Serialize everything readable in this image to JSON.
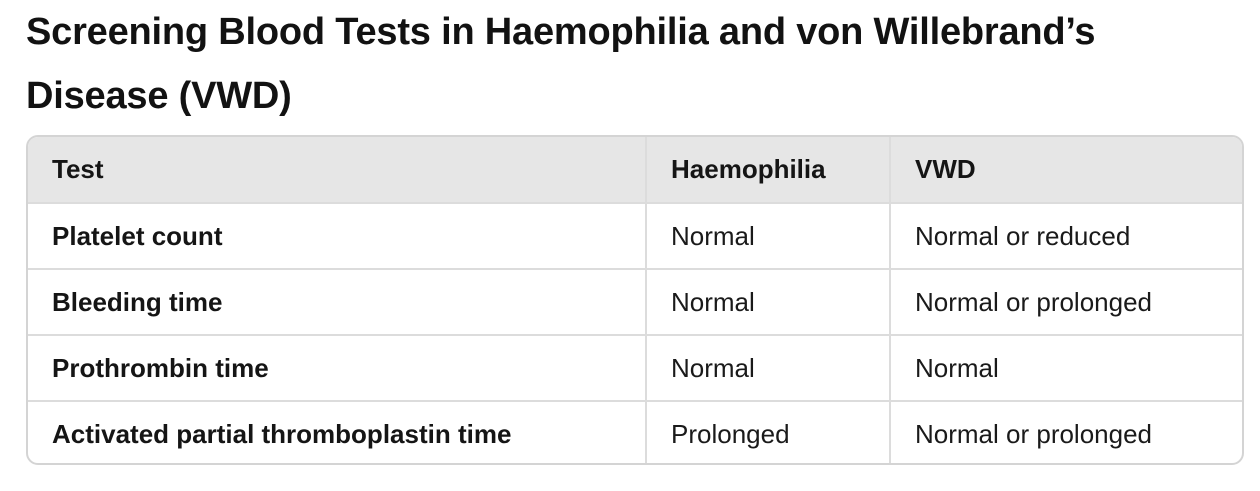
{
  "document": {
    "title": "Screening Blood Tests in Haemophilia and von Willebrand’s Disease (VWD)"
  },
  "table": {
    "headers": [
      "Test",
      "Haemophilia",
      "VWD"
    ],
    "rows": [
      {
        "test": "Platelet count",
        "haemophilia": "Normal",
        "vwd": "Normal or reduced"
      },
      {
        "test": "Bleeding time",
        "haemophilia": "Normal",
        "vwd": "Normal or prolonged"
      },
      {
        "test": "Prothrombin time",
        "haemophilia": "Normal",
        "vwd": "Normal"
      },
      {
        "test": "Activated partial thromboplastin time",
        "haemophilia": "Prolonged",
        "vwd": "Normal or prolonged"
      }
    ]
  },
  "colors": {
    "header_bg": "#e6e6e6",
    "border": "#d4d4d4",
    "text": "#111111"
  }
}
